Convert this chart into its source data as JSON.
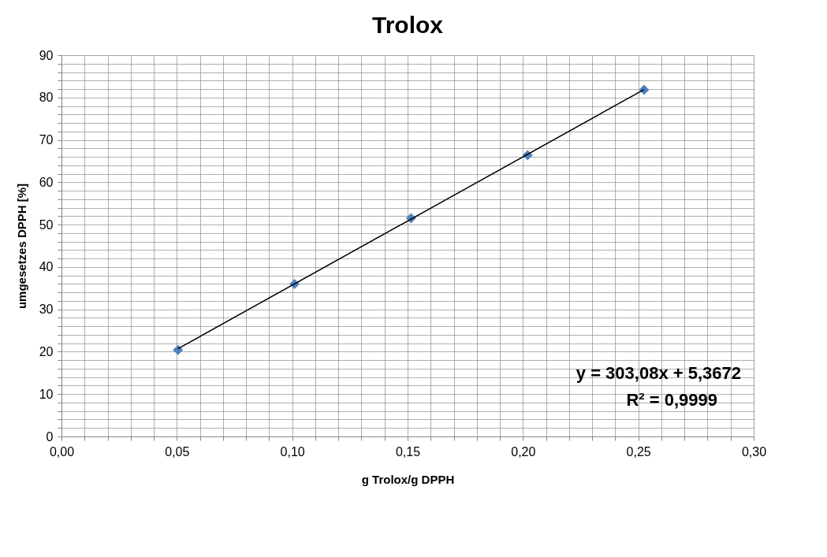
{
  "chart_data": {
    "type": "scatter",
    "title": "Trolox",
    "xlabel": "g Trolox/g DPPH",
    "ylabel": "umgesetzes DPPH [%]",
    "series": [
      {
        "color": "#4f81bd",
        "marker": "diamond",
        "x": [
          0.0505,
          0.101,
          0.1515,
          0.202,
          0.2525
        ],
        "values": [
          20.4,
          36.0,
          51.5,
          66.4,
          81.8
        ]
      },
      {
        "type": "line",
        "color": "#000000",
        "marker": "none",
        "x": [
          0.0505,
          0.2525
        ],
        "values": [
          20.7,
          81.9
        ]
      }
    ],
    "xlim": [
      0,
      0.3
    ],
    "ylim": [
      0,
      90
    ],
    "xticks": [
      {
        "value": 0,
        "label": "0,00"
      },
      {
        "value": 0.01,
        "label": null
      },
      {
        "value": 0.02,
        "label": null
      },
      {
        "value": 0.03,
        "label": null
      },
      {
        "value": 0.04,
        "label": null
      },
      {
        "value": 0.05,
        "label": "0,05"
      },
      {
        "value": 0.06,
        "label": null
      },
      {
        "value": 0.07,
        "label": null
      },
      {
        "value": 0.08,
        "label": null
      },
      {
        "value": 0.09,
        "label": null
      },
      {
        "value": 0.1,
        "label": "0,10"
      },
      {
        "value": 0.11,
        "label": null
      },
      {
        "value": 0.12,
        "label": null
      },
      {
        "value": 0.13,
        "label": null
      },
      {
        "value": 0.14,
        "label": null
      },
      {
        "value": 0.15,
        "label": "0,15"
      },
      {
        "value": 0.16,
        "label": null
      },
      {
        "value": 0.17,
        "label": null
      },
      {
        "value": 0.18,
        "label": null
      },
      {
        "value": 0.19,
        "label": null
      },
      {
        "value": 0.2,
        "label": "0,20"
      },
      {
        "value": 0.21,
        "label": null
      },
      {
        "value": 0.22,
        "label": null
      },
      {
        "value": 0.23,
        "label": null
      },
      {
        "value": 0.24,
        "label": null
      },
      {
        "value": 0.25,
        "label": "0,25"
      },
      {
        "value": 0.26,
        "label": null
      },
      {
        "value": 0.27,
        "label": null
      },
      {
        "value": 0.28,
        "label": null
      },
      {
        "value": 0.29,
        "label": null
      },
      {
        "value": 0.3,
        "label": "0,30"
      }
    ],
    "yticks": [
      0,
      {
        "value": 2,
        "label": null
      },
      {
        "value": 4,
        "label": null
      },
      {
        "value": 6,
        "label": null
      },
      {
        "value": 8,
        "label": null
      },
      10,
      {
        "value": 12,
        "label": null
      },
      {
        "value": 14,
        "label": null
      },
      {
        "value": 16,
        "label": null
      },
      {
        "value": 18,
        "label": null
      },
      20,
      {
        "value": 22,
        "label": null
      },
      {
        "value": 24,
        "label": null
      },
      {
        "value": 26,
        "label": null
      },
      {
        "value": 28,
        "label": null
      },
      30,
      {
        "value": 32,
        "label": null
      },
      {
        "value": 34,
        "label": null
      },
      {
        "value": 36,
        "label": null
      },
      {
        "value": 38,
        "label": null
      },
      40,
      {
        "value": 42,
        "label": null
      },
      {
        "value": 44,
        "label": null
      },
      {
        "value": 46,
        "label": null
      },
      {
        "value": 48,
        "label": null
      },
      50,
      {
        "value": 52,
        "label": null
      },
      {
        "value": 54,
        "label": null
      },
      {
        "value": 56,
        "label": null
      },
      {
        "value": 58,
        "label": null
      },
      60,
      {
        "value": 62,
        "label": null
      },
      {
        "value": 64,
        "label": null
      },
      {
        "value": 66,
        "label": null
      },
      {
        "value": 68,
        "label": null
      },
      70,
      {
        "value": 72,
        "label": null
      },
      {
        "value": 74,
        "label": null
      },
      {
        "value": 76,
        "label": null
      },
      {
        "value": 78,
        "label": null
      },
      80,
      {
        "value": 82,
        "label": null
      },
      {
        "value": 84,
        "label": null
      },
      {
        "value": 86,
        "label": null
      },
      {
        "value": 88,
        "label": null
      },
      90
    ],
    "grid": true,
    "annotations": [
      "y = 303,08x + 5,3672",
      "R² = 0,9999"
    ]
  }
}
